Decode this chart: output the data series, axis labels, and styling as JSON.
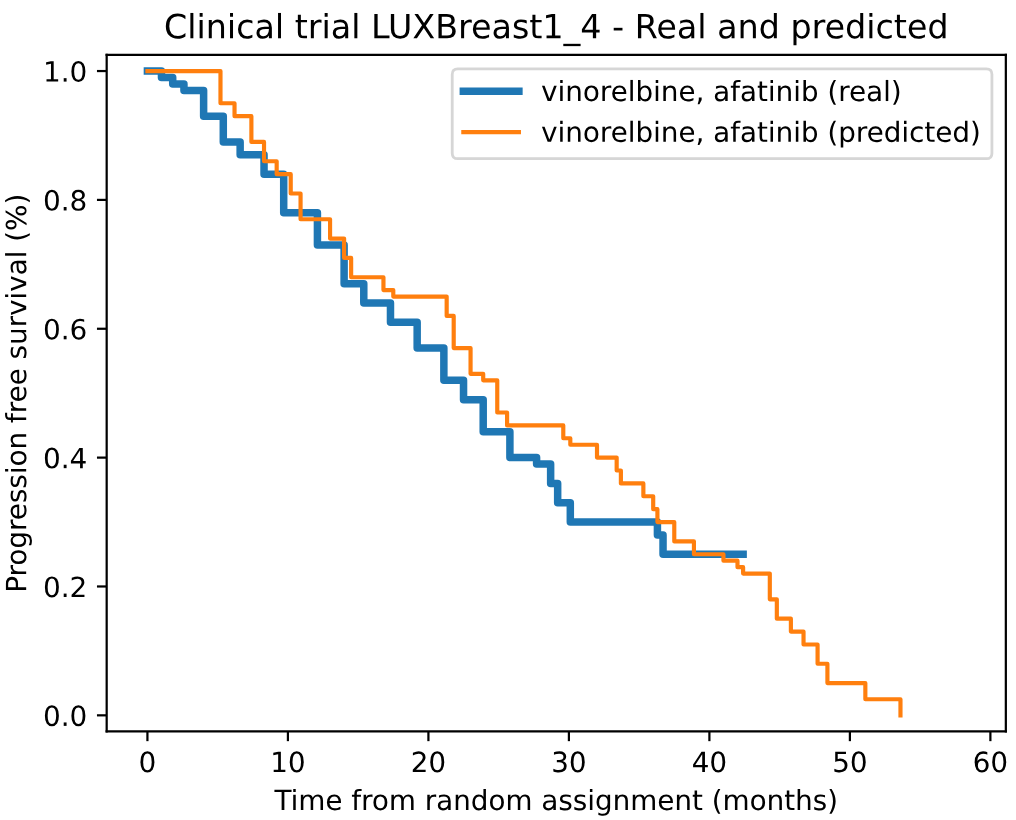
{
  "chart_data": {
    "type": "step",
    "title": "Clinical trial LUXBreast1_4 - Real and predicted",
    "xlabel": "Time from random assignment (months)",
    "ylabel": "Progression free survival (%)",
    "xlim": [
      -2.9,
      61.1
    ],
    "ylim": [
      -0.025,
      1.025
    ],
    "xticks": [
      0,
      10,
      20,
      30,
      40,
      50,
      60
    ],
    "yticks": [
      {
        "value": 0,
        "label": "0.0"
      },
      {
        "value": 0.2,
        "label": "0.2"
      },
      {
        "value": 0.4,
        "label": "0.4"
      },
      {
        "value": 0.6,
        "label": "0.6"
      },
      {
        "value": 0.8,
        "label": "0.8"
      },
      {
        "value": 1,
        "label": "1.0"
      }
    ],
    "grid": false,
    "legend": "top right",
    "marker": "none",
    "line_style": "solid",
    "series": [
      {
        "name": "vinorelbine, afatinib (real)",
        "color": "#1f77b4",
        "x": [
          0,
          1.0,
          1.8,
          2.6,
          4.0,
          5.4,
          6.6,
          8.3,
          9.7,
          12.1,
          14.0,
          15.4,
          17.3,
          19.2,
          21.1,
          22.5,
          23.9,
          25.8,
          27.7,
          28.7,
          29.2,
          30.1,
          36.0,
          36.3,
          36.7,
          42.4
        ],
        "values": [
          1.0,
          0.99,
          0.98,
          0.97,
          0.93,
          0.89,
          0.87,
          0.84,
          0.78,
          0.73,
          0.67,
          0.64,
          0.61,
          0.57,
          0.52,
          0.49,
          0.44,
          0.4,
          0.39,
          0.36,
          0.33,
          0.3,
          0.3,
          0.28,
          0.25,
          0.25
        ]
      },
      {
        "name": "vinorelbine, afatinib (predicted)",
        "color": "#ff7f0e",
        "x": [
          0,
          5.0,
          5.2,
          6.2,
          7.4,
          8.3,
          9.2,
          10.2,
          10.9,
          13.0,
          14.0,
          14.5,
          16.8,
          17.5,
          21.3,
          21.8,
          23.0,
          23.9,
          24.9,
          25.6,
          29.6,
          30.1,
          32.0,
          33.4,
          33.7,
          35.3,
          36.0,
          36.3,
          37.5,
          38.9,
          41.0,
          42.0,
          42.4,
          42.9,
          44.3,
          44.8,
          45.8,
          46.7,
          47.7,
          48.4,
          51.1,
          53.6
        ],
        "values": [
          1.0,
          1.0,
          0.95,
          0.93,
          0.89,
          0.86,
          0.84,
          0.81,
          0.77,
          0.74,
          0.71,
          0.68,
          0.66,
          0.65,
          0.62,
          0.57,
          0.53,
          0.52,
          0.47,
          0.45,
          0.43,
          0.42,
          0.4,
          0.38,
          0.36,
          0.34,
          0.32,
          0.3,
          0.27,
          0.25,
          0.24,
          0.23,
          0.22,
          0.22,
          0.18,
          0.15,
          0.13,
          0.11,
          0.08,
          0.05,
          0.025,
          0.0
        ]
      }
    ]
  }
}
